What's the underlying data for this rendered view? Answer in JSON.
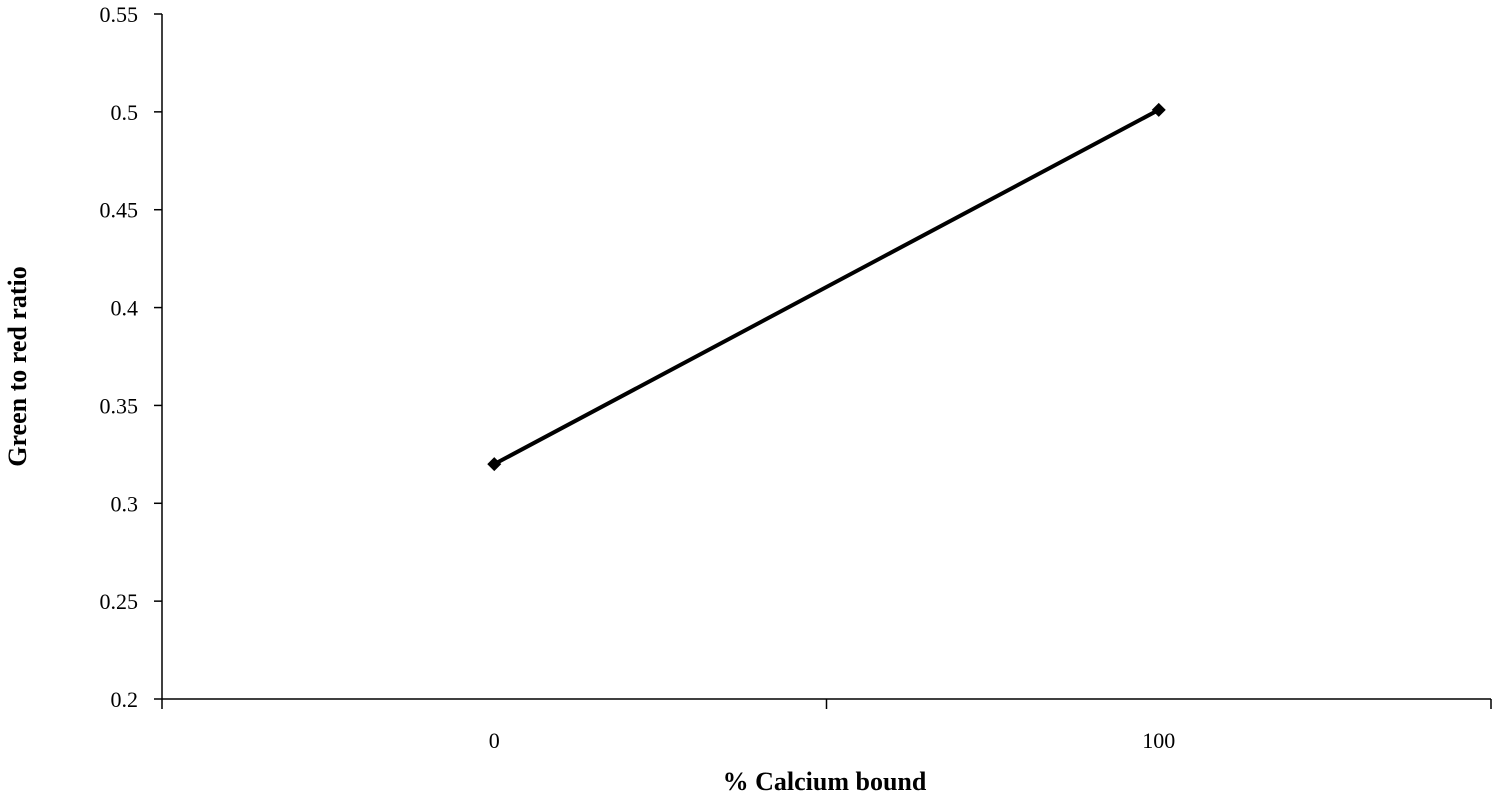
{
  "chart_data": {
    "type": "line",
    "categories": [
      "0",
      "100"
    ],
    "series": [
      {
        "values": [
          0.32,
          0.501
        ]
      }
    ],
    "xlabel": "% Calcium bound",
    "ylabel": "Green to red ratio",
    "ylim": [
      0.2,
      0.55
    ],
    "yticks": [
      "0.2",
      "0.25",
      "0.3",
      "0.35",
      "0.4",
      "0.45",
      "0.5",
      "0.55"
    ],
    "grid": false,
    "legend": "none",
    "colors": {
      "line": "#000000",
      "axis": "#000000",
      "marker": "#000000"
    },
    "marker": "diamond"
  }
}
